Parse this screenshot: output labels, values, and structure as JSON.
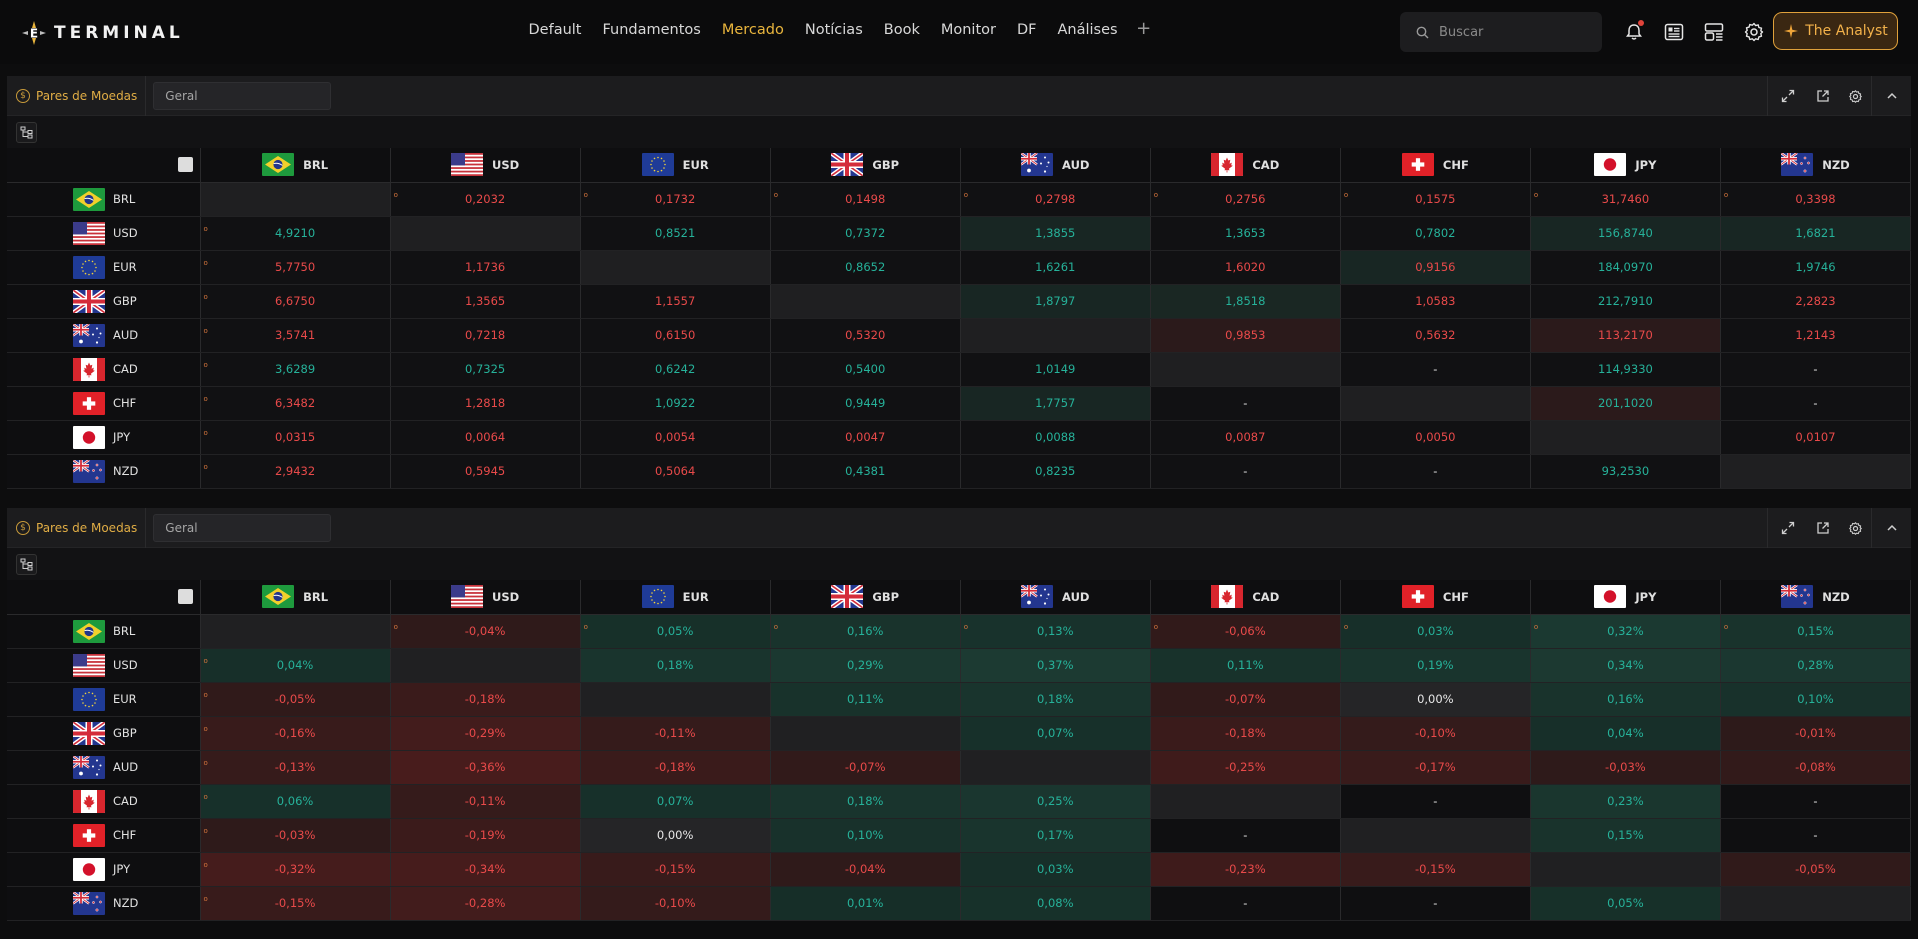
{
  "app": {
    "logo_text": "TERMINAL"
  },
  "nav": {
    "items": [
      "Default",
      "Fundamentos",
      "Mercado",
      "Notícias",
      "Book",
      "Monitor",
      "DF",
      "Análises"
    ],
    "active": "Mercado",
    "add": "+"
  },
  "search": {
    "placeholder": "Buscar"
  },
  "analyst": {
    "label": "The Analyst"
  },
  "colors": {
    "up": "#26b29a",
    "down": "#e94a4a",
    "accent": "#e9b53d"
  },
  "icons": [
    "bell-icon",
    "news-icon",
    "layout-icon",
    "gear-icon",
    "sparkle-icon",
    "expand-icon",
    "popout-icon",
    "settings-icon",
    "collapse-icon",
    "tree-icon",
    "search-icon",
    "coin-icon"
  ],
  "panels": [
    {
      "title": "Pares de Moedas",
      "filter": "Geral",
      "currencies": [
        "BRL",
        "USD",
        "EUR",
        "GBP",
        "AUD",
        "CAD",
        "CHF",
        "JPY",
        "NZD"
      ],
      "rows": [
        {
          "code": "BRL",
          "cells": [
            null,
            "0,2032",
            "0,1732",
            "0,1498",
            "0,2798",
            "0,2756",
            "0,1575",
            "31,7460",
            "0,3398"
          ]
        },
        {
          "code": "USD",
          "cells": [
            "4,9210",
            null,
            "0,8521",
            "0,7372",
            "1,3855",
            "1,3653",
            "0,7802",
            "156,8740",
            "1,6821"
          ]
        },
        {
          "code": "EUR",
          "cells": [
            "5,7750",
            "1,1736",
            null,
            "0,8652",
            "1,6261",
            "1,6020",
            "0,9156",
            "184,0970",
            "1,9746"
          ]
        },
        {
          "code": "GBP",
          "cells": [
            "6,6750",
            "1,3565",
            "1,1557",
            null,
            "1,8797",
            "1,8518",
            "1,0583",
            "212,7910",
            "2,2823"
          ]
        },
        {
          "code": "AUD",
          "cells": [
            "3,5741",
            "0,7218",
            "0,6150",
            "0,5320",
            null,
            "0,9853",
            "0,5632",
            "113,2170",
            "1,2143"
          ]
        },
        {
          "code": "CAD",
          "cells": [
            "3,6289",
            "0,7325",
            "0,6242",
            "0,5400",
            "1,0149",
            null,
            "-",
            "114,9330",
            "-"
          ]
        },
        {
          "code": "CHF",
          "cells": [
            "6,3482",
            "1,2818",
            "1,0922",
            "0,9449",
            "1,7757",
            "-",
            null,
            "201,1020",
            "-"
          ]
        },
        {
          "code": "JPY",
          "cells": [
            "0,0315",
            "0,0064",
            "0,0054",
            "0,0047",
            "0,0088",
            "0,0087",
            "0,0050",
            null,
            "0,0107"
          ]
        },
        {
          "code": "NZD",
          "cells": [
            "2,9432",
            "0,5945",
            "0,5064",
            "0,4381",
            "0,8235",
            "-",
            "-",
            "93,2530",
            null
          ]
        }
      ]
    },
    {
      "title": "Pares de Moedas",
      "filter": "Geral",
      "currencies": [
        "BRL",
        "USD",
        "EUR",
        "GBP",
        "AUD",
        "CAD",
        "CHF",
        "JPY",
        "NZD"
      ],
      "rows": [
        {
          "code": "BRL",
          "cells": [
            null,
            "-0,04%",
            "0,05%",
            "0,16%",
            "0,13%",
            "-0,06%",
            "0,03%",
            "0,32%",
            "0,15%"
          ]
        },
        {
          "code": "USD",
          "cells": [
            "0,04%",
            null,
            "0,18%",
            "0,29%",
            "0,37%",
            "0,11%",
            "0,19%",
            "0,34%",
            "0,28%"
          ]
        },
        {
          "code": "EUR",
          "cells": [
            "-0,05%",
            "-0,18%",
            null,
            "0,11%",
            "0,18%",
            "-0,07%",
            "0,00%",
            "0,16%",
            "0,10%"
          ]
        },
        {
          "code": "GBP",
          "cells": [
            "-0,16%",
            "-0,29%",
            "-0,11%",
            null,
            "0,07%",
            "-0,18%",
            "-0,10%",
            "0,04%",
            "-0,01%"
          ]
        },
        {
          "code": "AUD",
          "cells": [
            "-0,13%",
            "-0,36%",
            "-0,18%",
            "-0,07%",
            null,
            "-0,25%",
            "-0,17%",
            "-0,03%",
            "-0,08%"
          ]
        },
        {
          "code": "CAD",
          "cells": [
            "0,06%",
            "-0,11%",
            "0,07%",
            "0,18%",
            "0,25%",
            null,
            "-",
            "0,23%",
            "-"
          ]
        },
        {
          "code": "CHF",
          "cells": [
            "-0,03%",
            "-0,19%",
            "0,00%",
            "0,10%",
            "0,17%",
            "-",
            null,
            "0,15%",
            "-"
          ]
        },
        {
          "code": "JPY",
          "cells": [
            "-0,32%",
            "-0,34%",
            "-0,15%",
            "-0,04%",
            "0,03%",
            "-0,23%",
            "-0,15%",
            null,
            "-0,05%"
          ]
        },
        {
          "code": "NZD",
          "cells": [
            "-0,15%",
            "-0,28%",
            "-0,10%",
            "0,01%",
            "0,08%",
            "-",
            "-",
            "0,05%",
            null
          ]
        }
      ]
    }
  ]
}
